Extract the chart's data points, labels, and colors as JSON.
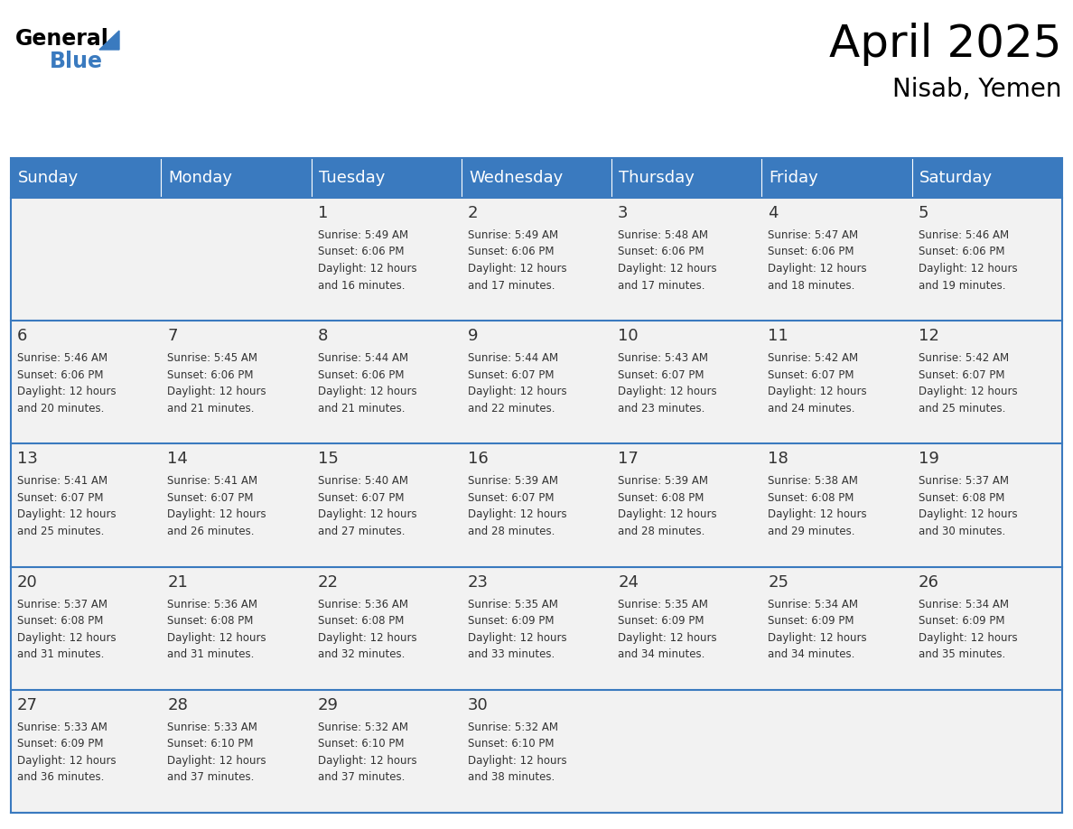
{
  "title": "April 2025",
  "subtitle": "Nisab, Yemen",
  "header_bg_color": "#3a7abf",
  "header_text_color": "#ffffff",
  "cell_bg_color": "#f2f2f2",
  "border_color": "#3a7abf",
  "text_color": "#333333",
  "day_names": [
    "Sunday",
    "Monday",
    "Tuesday",
    "Wednesday",
    "Thursday",
    "Friday",
    "Saturday"
  ],
  "calendar_data": [
    [
      {
        "day": null,
        "sunrise": null,
        "sunset": null,
        "daylight_min": null
      },
      {
        "day": null,
        "sunrise": null,
        "sunset": null,
        "daylight_min": null
      },
      {
        "day": 1,
        "sunrise": "5:49 AM",
        "sunset": "6:06 PM",
        "daylight_min": 16
      },
      {
        "day": 2,
        "sunrise": "5:49 AM",
        "sunset": "6:06 PM",
        "daylight_min": 17
      },
      {
        "day": 3,
        "sunrise": "5:48 AM",
        "sunset": "6:06 PM",
        "daylight_min": 17
      },
      {
        "day": 4,
        "sunrise": "5:47 AM",
        "sunset": "6:06 PM",
        "daylight_min": 18
      },
      {
        "day": 5,
        "sunrise": "5:46 AM",
        "sunset": "6:06 PM",
        "daylight_min": 19
      }
    ],
    [
      {
        "day": 6,
        "sunrise": "5:46 AM",
        "sunset": "6:06 PM",
        "daylight_min": 20
      },
      {
        "day": 7,
        "sunrise": "5:45 AM",
        "sunset": "6:06 PM",
        "daylight_min": 21
      },
      {
        "day": 8,
        "sunrise": "5:44 AM",
        "sunset": "6:06 PM",
        "daylight_min": 21
      },
      {
        "day": 9,
        "sunrise": "5:44 AM",
        "sunset": "6:07 PM",
        "daylight_min": 22
      },
      {
        "day": 10,
        "sunrise": "5:43 AM",
        "sunset": "6:07 PM",
        "daylight_min": 23
      },
      {
        "day": 11,
        "sunrise": "5:42 AM",
        "sunset": "6:07 PM",
        "daylight_min": 24
      },
      {
        "day": 12,
        "sunrise": "5:42 AM",
        "sunset": "6:07 PM",
        "daylight_min": 25
      }
    ],
    [
      {
        "day": 13,
        "sunrise": "5:41 AM",
        "sunset": "6:07 PM",
        "daylight_min": 25
      },
      {
        "day": 14,
        "sunrise": "5:41 AM",
        "sunset": "6:07 PM",
        "daylight_min": 26
      },
      {
        "day": 15,
        "sunrise": "5:40 AM",
        "sunset": "6:07 PM",
        "daylight_min": 27
      },
      {
        "day": 16,
        "sunrise": "5:39 AM",
        "sunset": "6:07 PM",
        "daylight_min": 28
      },
      {
        "day": 17,
        "sunrise": "5:39 AM",
        "sunset": "6:08 PM",
        "daylight_min": 28
      },
      {
        "day": 18,
        "sunrise": "5:38 AM",
        "sunset": "6:08 PM",
        "daylight_min": 29
      },
      {
        "day": 19,
        "sunrise": "5:37 AM",
        "sunset": "6:08 PM",
        "daylight_min": 30
      }
    ],
    [
      {
        "day": 20,
        "sunrise": "5:37 AM",
        "sunset": "6:08 PM",
        "daylight_min": 31
      },
      {
        "day": 21,
        "sunrise": "5:36 AM",
        "sunset": "6:08 PM",
        "daylight_min": 31
      },
      {
        "day": 22,
        "sunrise": "5:36 AM",
        "sunset": "6:08 PM",
        "daylight_min": 32
      },
      {
        "day": 23,
        "sunrise": "5:35 AM",
        "sunset": "6:09 PM",
        "daylight_min": 33
      },
      {
        "day": 24,
        "sunrise": "5:35 AM",
        "sunset": "6:09 PM",
        "daylight_min": 34
      },
      {
        "day": 25,
        "sunrise": "5:34 AM",
        "sunset": "6:09 PM",
        "daylight_min": 34
      },
      {
        "day": 26,
        "sunrise": "5:34 AM",
        "sunset": "6:09 PM",
        "daylight_min": 35
      }
    ],
    [
      {
        "day": 27,
        "sunrise": "5:33 AM",
        "sunset": "6:09 PM",
        "daylight_min": 36
      },
      {
        "day": 28,
        "sunrise": "5:33 AM",
        "sunset": "6:10 PM",
        "daylight_min": 37
      },
      {
        "day": 29,
        "sunrise": "5:32 AM",
        "sunset": "6:10 PM",
        "daylight_min": 37
      },
      {
        "day": 30,
        "sunrise": "5:32 AM",
        "sunset": "6:10 PM",
        "daylight_min": 38
      },
      {
        "day": null,
        "sunrise": null,
        "sunset": null,
        "daylight_min": null
      },
      {
        "day": null,
        "sunrise": null,
        "sunset": null,
        "daylight_min": null
      },
      {
        "day": null,
        "sunrise": null,
        "sunset": null,
        "daylight_min": null
      }
    ]
  ],
  "logo_text_general": "General",
  "logo_text_blue": "Blue",
  "logo_triangle_color": "#3a7abf",
  "title_fontsize": 36,
  "subtitle_fontsize": 20,
  "header_fontsize": 13,
  "day_num_fontsize": 13,
  "cell_text_fontsize": 8.5
}
